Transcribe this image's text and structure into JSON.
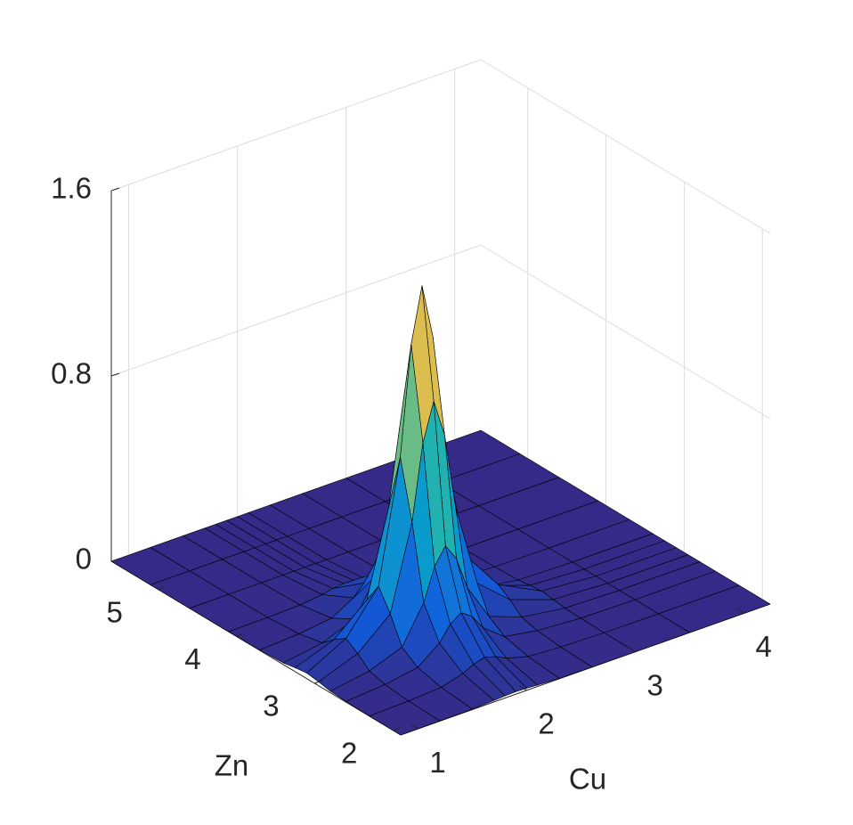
{
  "chart_data": {
    "type": "surface",
    "xlabel": "Cu",
    "ylabel": "Zn",
    "x": [
      0.84,
      1.2,
      1.5,
      1.7,
      1.8,
      1.9,
      2.0,
      2.1,
      2.3,
      2.6,
      3.0,
      3.5,
      4.24
    ],
    "y": [
      1.9,
      2.3,
      2.6,
      2.8,
      2.95,
      3.1,
      3.25,
      3.4,
      3.7,
      4.1,
      4.6,
      5.1,
      5.6
    ],
    "z": [
      [
        0,
        0.001,
        0.002,
        0.006,
        0.009,
        0.011,
        0.009,
        0.006,
        0.002,
        0.001,
        0,
        0,
        0
      ],
      [
        0.001,
        0.006,
        0.015,
        0.041,
        0.065,
        0.078,
        0.065,
        0.041,
        0.015,
        0.006,
        0.001,
        0,
        0
      ],
      [
        0.003,
        0.016,
        0.04,
        0.112,
        0.177,
        0.21,
        0.177,
        0.112,
        0.04,
        0.016,
        0.003,
        0,
        0
      ],
      [
        0.007,
        0.034,
        0.087,
        0.245,
        0.386,
        0.458,
        0.386,
        0.245,
        0.087,
        0.034,
        0.006,
        0,
        0
      ],
      [
        0.017,
        0.079,
        0.2,
        0.563,
        0.888,
        1.052,
        0.888,
        0.563,
        0.2,
        0.079,
        0.013,
        0,
        0
      ],
      [
        0.024,
        0.114,
        0.289,
        0.813,
        1.283,
        1.52,
        1.283,
        0.813,
        0.289,
        0.114,
        0.019,
        0,
        0
      ],
      [
        0.017,
        0.079,
        0.2,
        0.563,
        0.888,
        1.052,
        0.888,
        0.563,
        0.2,
        0.079,
        0.013,
        0,
        0
      ],
      [
        0.007,
        0.034,
        0.087,
        0.245,
        0.386,
        0.458,
        0.386,
        0.245,
        0.087,
        0.034,
        0.006,
        0,
        0
      ],
      [
        0.002,
        0.012,
        0.03,
        0.084,
        0.132,
        0.157,
        0.132,
        0.084,
        0.03,
        0.012,
        0.002,
        0,
        0
      ],
      [
        0,
        0.002,
        0.006,
        0.017,
        0.027,
        0.032,
        0.027,
        0.017,
        0.006,
        0.002,
        0,
        0,
        0
      ],
      [
        0,
        0,
        0,
        0,
        0,
        0,
        0,
        0,
        0,
        0,
        0,
        0,
        0
      ],
      [
        0,
        0,
        0,
        0,
        0,
        0,
        0,
        0,
        0,
        0,
        0,
        0,
        0
      ],
      [
        0,
        0,
        0,
        0,
        0,
        0,
        0,
        0,
        0,
        0,
        0,
        0,
        0
      ]
    ],
    "xlim": [
      0.84,
      4.24
    ],
    "ylim": [
      1.9,
      5.6
    ],
    "zlim": [
      0,
      1.6
    ],
    "xticks": [
      1,
      2,
      3,
      4
    ],
    "yticks": [
      2,
      3,
      4,
      5
    ],
    "zticks": [
      0,
      0.8,
      1.6
    ],
    "grid": true,
    "colormap": "parula",
    "edge_color": "#000000"
  }
}
